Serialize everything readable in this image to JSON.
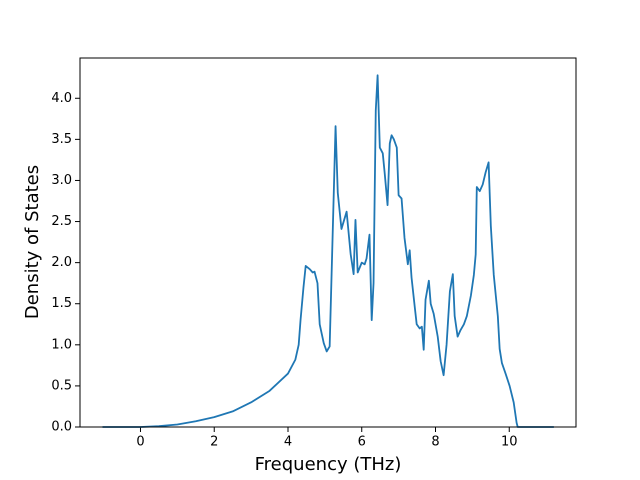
{
  "chart_data": {
    "type": "line",
    "x_label": "Frequency (THz)",
    "y_label": "Density of States",
    "color": "#1f77b4",
    "x": [
      -1.03,
      0,
      0.5,
      1,
      1.5,
      2,
      2.5,
      3,
      3.5,
      4,
      4.2,
      4.29,
      4.34,
      4.42,
      4.48,
      4.59,
      4.67,
      4.72,
      4.8,
      4.86,
      4.97,
      5.05,
      5.13,
      5.29,
      5.35,
      5.45,
      5.59,
      5.7,
      5.78,
      5.83,
      5.89,
      6.0,
      6.08,
      6.13,
      6.21,
      6.27,
      6.32,
      6.38,
      6.43,
      6.49,
      6.57,
      6.62,
      6.7,
      6.76,
      6.81,
      6.87,
      6.95,
      7.0,
      7.08,
      7.16,
      7.25,
      7.3,
      7.35,
      7.44,
      7.49,
      7.57,
      7.63,
      7.68,
      7.73,
      7.82,
      7.87,
      7.95,
      8.06,
      8.14,
      8.22,
      8.3,
      8.39,
      8.47,
      8.52,
      8.6,
      8.68,
      8.77,
      8.85,
      8.96,
      9.04,
      9.09,
      9.12,
      9.2,
      9.28,
      9.36,
      9.44,
      9.5,
      9.58,
      9.69,
      9.74,
      9.8,
      9.9,
      10.01,
      10.12,
      10.2,
      10.23,
      11.21
    ],
    "values": [
      0,
      0,
      0.01,
      0.03,
      0.07,
      0.12,
      0.19,
      0.3,
      0.44,
      0.65,
      0.82,
      1.0,
      1.3,
      1.7,
      1.96,
      1.92,
      1.88,
      1.89,
      1.75,
      1.25,
      1.02,
      0.92,
      0.98,
      3.66,
      2.85,
      2.41,
      2.62,
      2.1,
      1.86,
      2.52,
      1.88,
      2.0,
      1.98,
      2.05,
      2.34,
      1.3,
      1.75,
      3.85,
      4.28,
      3.4,
      3.33,
      3.1,
      2.7,
      3.45,
      3.55,
      3.5,
      3.4,
      2.82,
      2.78,
      2.3,
      1.98,
      2.15,
      1.82,
      1.45,
      1.25,
      1.2,
      1.22,
      0.94,
      1.55,
      1.78,
      1.5,
      1.38,
      1.1,
      0.8,
      0.63,
      1.0,
      1.65,
      1.86,
      1.35,
      1.1,
      1.18,
      1.25,
      1.35,
      1.6,
      1.85,
      2.1,
      2.92,
      2.87,
      2.95,
      3.1,
      3.22,
      2.45,
      1.85,
      1.35,
      0.95,
      0.78,
      0.65,
      0.5,
      0.3,
      0.05,
      0,
      0
    ],
    "xlim": [
      -1.64,
      11.81
    ],
    "ylim": [
      0,
      4.49
    ],
    "xticks": [
      0,
      2,
      4,
      6,
      8,
      10
    ],
    "yticks": [
      {
        "value": 0,
        "label": "0.0"
      },
      {
        "value": 0.5,
        "label": "0.5"
      },
      {
        "value": 1,
        "label": "1.0"
      },
      {
        "value": 1.5,
        "label": "1.5"
      },
      {
        "value": 2,
        "label": "2.0"
      },
      {
        "value": 2.5,
        "label": "2.5"
      },
      {
        "value": 3,
        "label": "3.0"
      },
      {
        "value": 3.5,
        "label": "3.5"
      },
      {
        "value": 4,
        "label": "4.0"
      }
    ]
  }
}
